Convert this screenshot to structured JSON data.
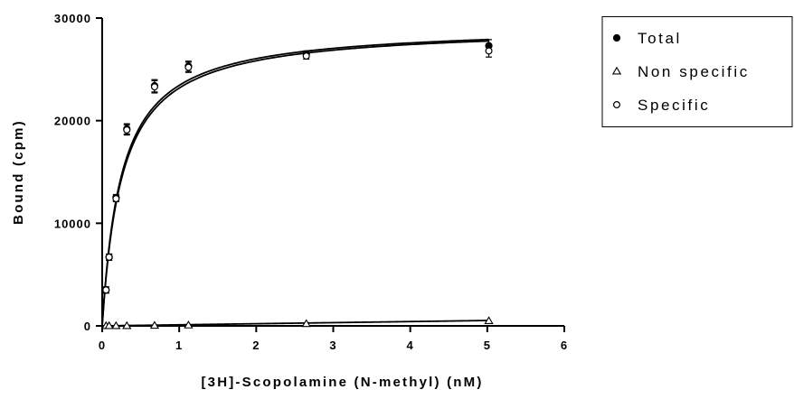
{
  "chart_data": {
    "type": "scatter",
    "title": "",
    "xlabel": "[3H]-Scopolamine (N-methyl) (nM)",
    "ylabel": "Bound (cpm)",
    "xlim": [
      0,
      6
    ],
    "ylim": [
      0,
      30000
    ],
    "x_ticks": [
      0,
      1,
      2,
      3,
      4,
      5,
      6
    ],
    "y_ticks": [
      0,
      10000,
      20000,
      30000
    ],
    "x_tick_labels": [
      "0",
      "1",
      "2",
      "3",
      "4",
      "5",
      "6"
    ],
    "y_tick_labels": [
      "0",
      "10000",
      "20000",
      "30000"
    ],
    "grid": false,
    "legend": {
      "placement": "top-right",
      "boxed": true
    },
    "series": [
      {
        "name": "Total",
        "marker": "filled-circle",
        "x": [
          0.05,
          0.09,
          0.18,
          0.32,
          0.68,
          1.12,
          2.65,
          5.02
        ],
        "y": [
          3500,
          6700,
          12500,
          19200,
          23400,
          25300,
          26500,
          27300
        ],
        "err": [
          300,
          300,
          300,
          500,
          600,
          500,
          300,
          600
        ],
        "fit": {
          "model": "one-site",
          "bmax": 29300,
          "kd": 0.25
        }
      },
      {
        "name": "Non specific",
        "marker": "open-triangle",
        "x": [
          0.05,
          0.09,
          0.18,
          0.32,
          0.68,
          1.12,
          2.65,
          5.02
        ],
        "y": [
          0,
          0,
          0,
          0,
          30,
          60,
          200,
          480
        ],
        "err": [
          0,
          0,
          0,
          0,
          0,
          0,
          0,
          0
        ],
        "fit": {
          "model": "linear",
          "slope": 105,
          "intercept": 0
        }
      },
      {
        "name": "Specific",
        "marker": "open-circle",
        "x": [
          0.05,
          0.09,
          0.18,
          0.32,
          0.68,
          1.12,
          2.65,
          5.02
        ],
        "y": [
          3500,
          6700,
          12400,
          19100,
          23300,
          25200,
          26300,
          26800
        ],
        "err": [
          300,
          300,
          300,
          500,
          600,
          500,
          300,
          600
        ],
        "fit": {
          "model": "one-site",
          "bmax": 29200,
          "kd": 0.26
        }
      }
    ],
    "colors": {
      "marker": "#000000",
      "line": "#000000",
      "background": "#ffffff"
    }
  }
}
